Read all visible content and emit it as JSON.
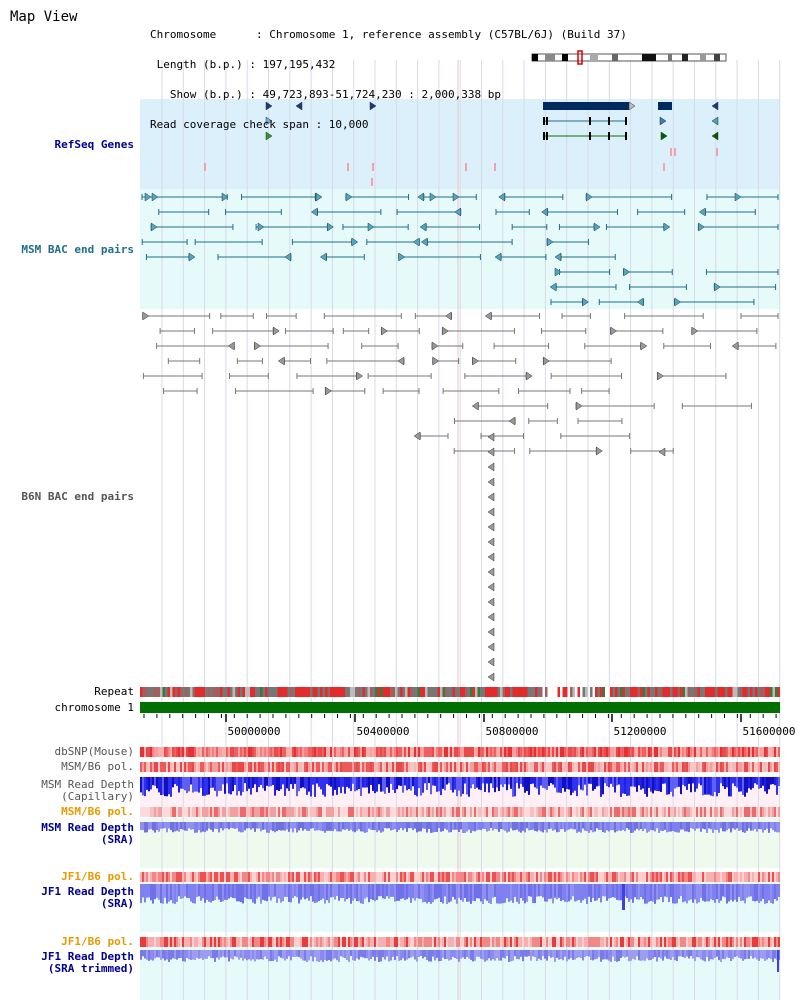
{
  "title": "Map View",
  "info": {
    "chromosome": "Chromosome      : Chromosome 1, reference assembly (C57BL/6J) (Build 37)",
    "length": " Length (b.p.) : 197,195,432",
    "show": "   Show (b.p.) : 49,723,893-51,724,230 : 2,000,338 bp",
    "coverage": "Read coverage check span : 10,000"
  },
  "track_labels": {
    "refseq": "RefSeq Genes",
    "msm_bac": "MSM BAC end pairs",
    "b6n_bac": "B6N BAC end pairs",
    "repeat": "Repeat",
    "chromosome": "chromosome 1",
    "dbsnp": "dbSNP(Mouse)",
    "msm_b6_pol_1": "MSM/B6 pol.",
    "msm_depth_cap_1": "MSM Read Depth",
    "msm_depth_cap_2": "(Capillary)",
    "msm_b6_pol_2": "MSM/B6 pol.",
    "msm_depth_sra_1": "MSM Read Depth",
    "msm_depth_sra_2": "(SRA)",
    "jf1_b6_pol_1": "JF1/B6 pol.",
    "jf1_depth_sra_1": "JF1 Read Depth",
    "jf1_depth_sra_2": "(SRA)",
    "jf1_b6_pol_2": "JF1/B6 pol.",
    "jf1_depth_trim_1": "JF1 Read Depth",
    "jf1_depth_trim_2": "(SRA trimmed)"
  },
  "axis_ticks": [
    "50000000",
    "50400000",
    "50800000",
    "51200000",
    "51600000"
  ],
  "colors": {
    "refseq_bg": "#dcf0fb",
    "bac_bg": "#e6fafa",
    "refseq_dark": "#002b5c",
    "msm_teal": "#1e6e8c",
    "b6n_gray": "#777777",
    "chromosome_green": "#007000",
    "gold_label": "#e89b00",
    "navy_label": "#000090",
    "teal_label": "#1e6e8c",
    "gray_label": "#555555",
    "red_track": "#e83a3a",
    "blue_track": "#2020e0",
    "light_blue": "#8080f0"
  },
  "icons": [
    "chromosome-ideogram-icon",
    "gene-arrow-icon"
  ]
}
